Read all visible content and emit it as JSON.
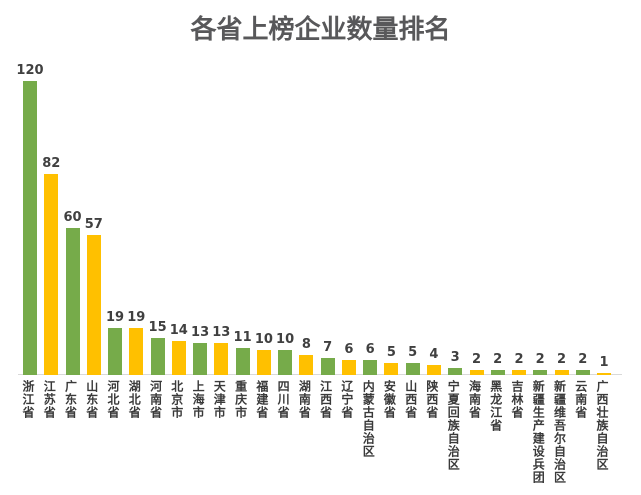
{
  "title": {
    "text": "各省上榜企业数量排名",
    "color": "#58585a"
  },
  "colors": {
    "bar_green": "#76ab4a",
    "bar_yellow": "#ffc000",
    "axis_line": "#d9d9d9",
    "value_label": "#404040",
    "category_label": "#3a3a3a",
    "background": "#ffffff"
  },
  "chart_data": {
    "type": "bar",
    "title": "各省上榜企业数量排名",
    "categories": [
      "浙江省",
      "江苏省",
      "广东省",
      "山东省",
      "河北省",
      "湖北省",
      "河南省",
      "北京市",
      "上海市",
      "天津市",
      "重庆市",
      "福建省",
      "四川省",
      "湖南省",
      "江西省",
      "辽宁省",
      "内蒙古自治区",
      "安徽省",
      "山西省",
      "陕西省",
      "宁夏回族自治区",
      "海南省",
      "黑龙江省",
      "吉林省",
      "新疆生产建设兵团",
      "新疆维吾尔自治区",
      "云南省",
      "广西壮族自治区"
    ],
    "values": [
      120,
      82,
      60,
      57,
      19,
      19,
      15,
      14,
      13,
      13,
      11,
      10,
      10,
      8,
      7,
      6,
      6,
      5,
      5,
      4,
      3,
      2,
      2,
      2,
      2,
      2,
      2,
      1
    ],
    "bar_color_pattern": [
      "#76ab4a",
      "#ffc000"
    ],
    "value_labels_shown": true,
    "xlabel": "",
    "ylabel": "",
    "ylim": [
      0,
      120
    ],
    "grid": false,
    "legend": null,
    "x_labels_orientation": "vertical-upright"
  }
}
